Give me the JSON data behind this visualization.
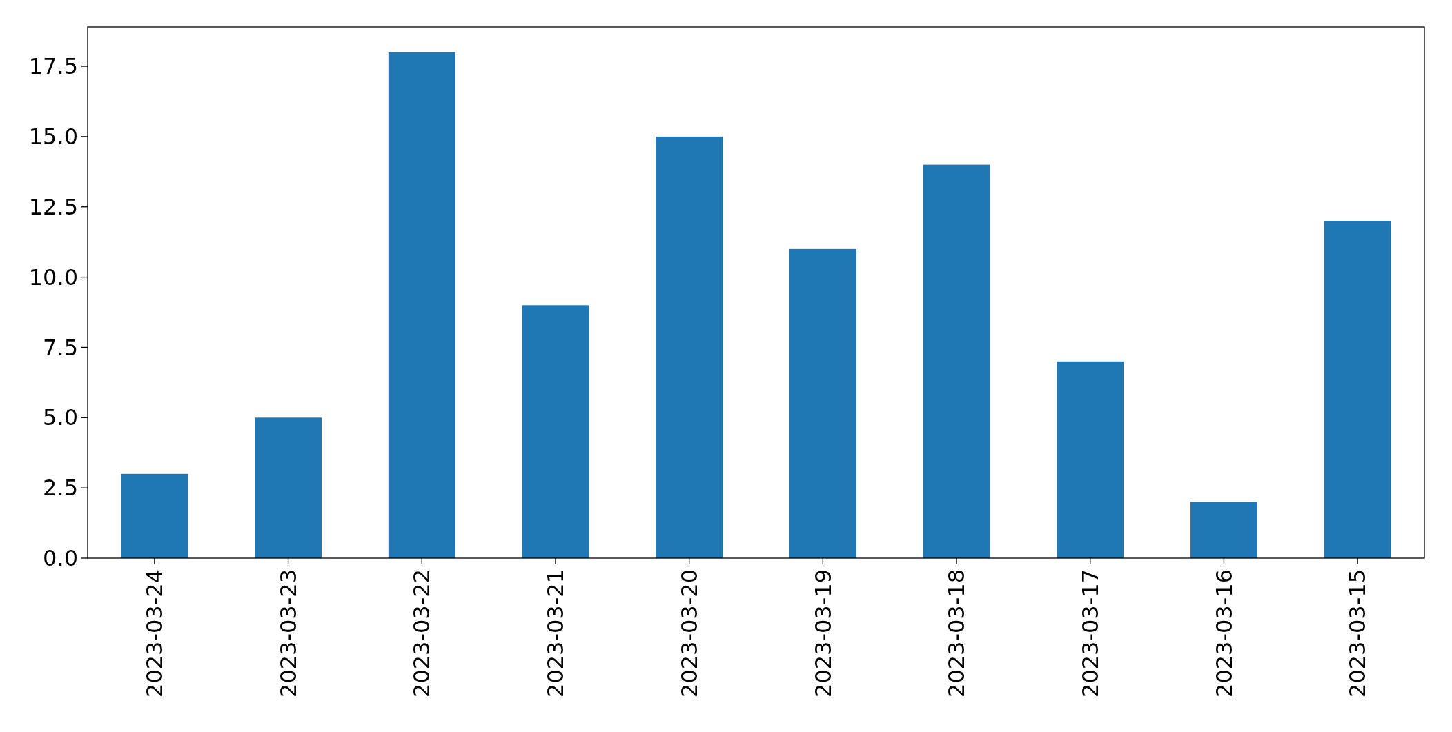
{
  "chart_data": {
    "type": "bar",
    "categories": [
      "2023-03-24",
      "2023-03-23",
      "2023-03-22",
      "2023-03-21",
      "2023-03-20",
      "2023-03-19",
      "2023-03-18",
      "2023-03-17",
      "2023-03-16",
      "2023-03-15"
    ],
    "values": [
      3,
      5,
      18,
      9,
      15,
      11,
      14,
      7,
      2,
      12
    ],
    "color": "#1f77b4",
    "ylim": [
      0,
      18.9
    ],
    "yticks": [
      {
        "value": 0,
        "label": "0.0"
      },
      {
        "value": 2.5,
        "label": "2.5"
      },
      {
        "value": 5,
        "label": "5.0"
      },
      {
        "value": 7.5,
        "label": "7.5"
      },
      {
        "value": 10,
        "label": "10.0"
      },
      {
        "value": 12.5,
        "label": "12.5"
      },
      {
        "value": 15,
        "label": "15.0"
      },
      {
        "value": 17.5,
        "label": "17.5"
      }
    ]
  }
}
